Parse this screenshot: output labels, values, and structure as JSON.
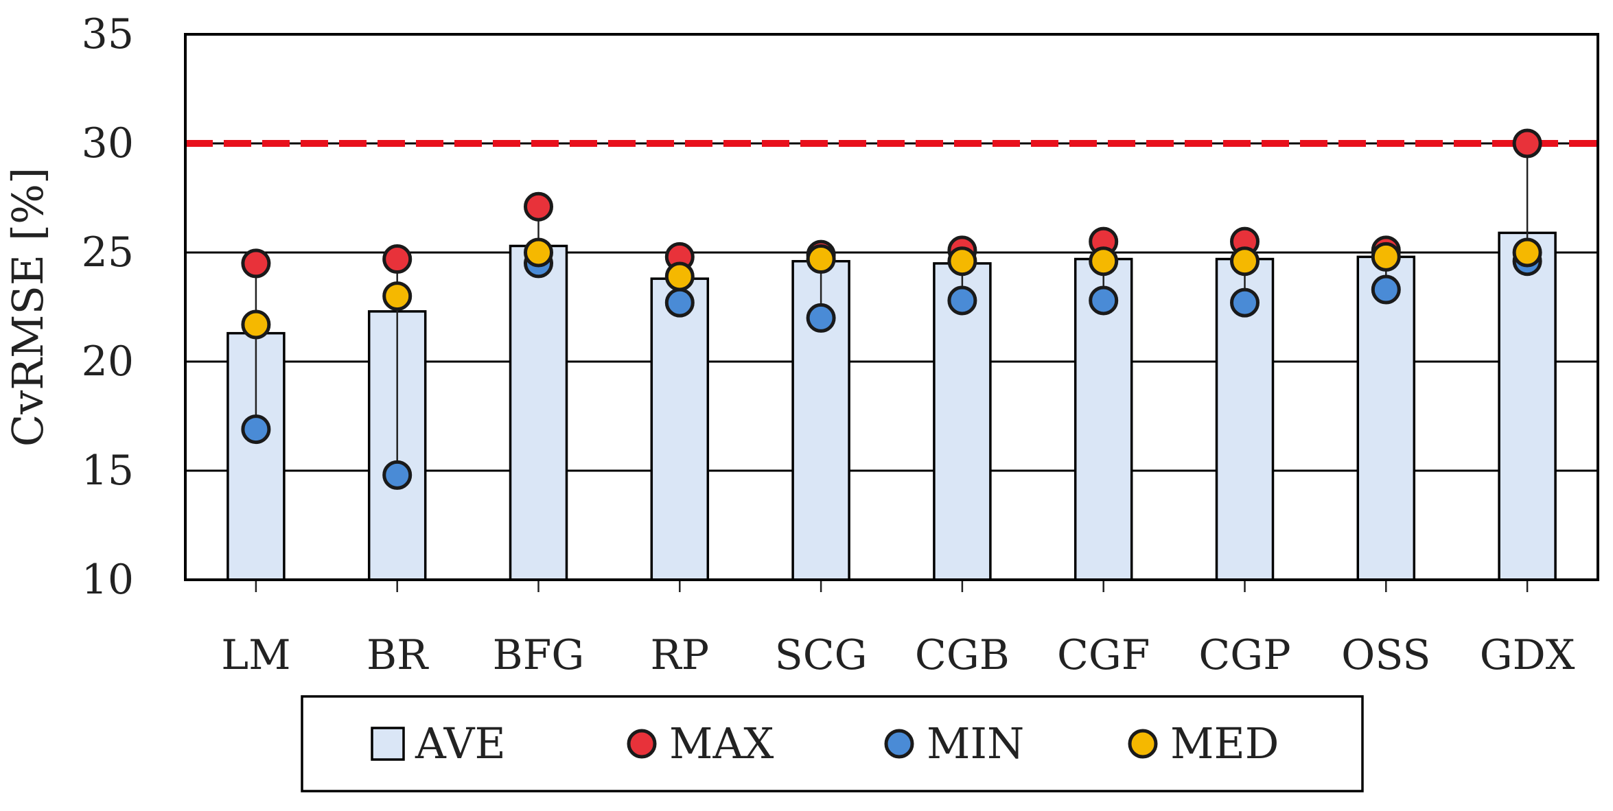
{
  "chart_data": {
    "type": "bar",
    "ylabel": "CvRMSE [%]",
    "ylim": [
      10,
      35
    ],
    "yticks": [
      10,
      15,
      20,
      25,
      30,
      35
    ],
    "grid": true,
    "legend_position": "bottom",
    "threshold": 30,
    "categories": [
      "LM",
      "BR",
      "BFG",
      "RP",
      "SCG",
      "CGB",
      "CGF",
      "CGP",
      "OSS",
      "GDX"
    ],
    "series": [
      {
        "name": "AVE",
        "kind": "bar",
        "color": "#dae6f6",
        "values": [
          21.3,
          22.3,
          25.3,
          23.8,
          24.6,
          24.5,
          24.7,
          24.7,
          24.8,
          25.9
        ]
      },
      {
        "name": "MAX",
        "kind": "marker",
        "color": "#e8323a",
        "values": [
          24.5,
          24.7,
          27.1,
          24.8,
          24.9,
          25.1,
          25.5,
          25.5,
          25.1,
          30.0
        ]
      },
      {
        "name": "MIN",
        "kind": "marker",
        "color": "#4a8bd6",
        "values": [
          16.9,
          14.8,
          24.5,
          22.7,
          22.0,
          22.8,
          22.8,
          22.7,
          23.3,
          24.6
        ]
      },
      {
        "name": "MED",
        "kind": "marker",
        "color": "#f5b800",
        "values": [
          21.7,
          23.0,
          25.0,
          23.9,
          24.7,
          24.6,
          24.6,
          24.6,
          24.8,
          25.0
        ]
      }
    ],
    "colors": {
      "threshold_line": "#e8101c",
      "grid": "#000000",
      "outline": "#000000"
    }
  }
}
